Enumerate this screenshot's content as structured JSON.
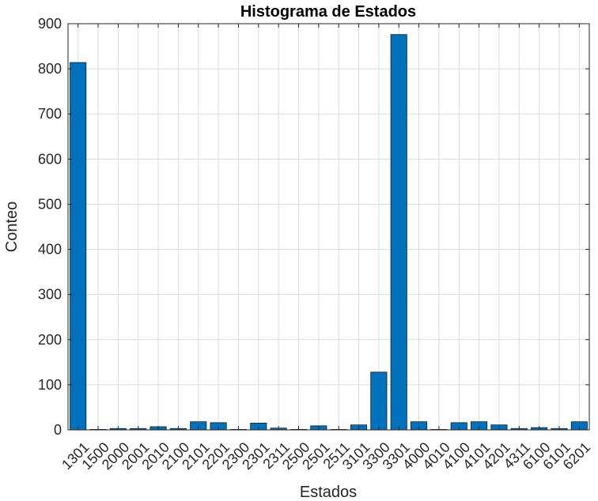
{
  "chart_data": {
    "type": "bar",
    "title": "Histograma de Estados",
    "xlabel": "Estados",
    "ylabel": "Conteo",
    "ylim": [
      0,
      900
    ],
    "yticks": [
      0,
      100,
      200,
      300,
      400,
      500,
      600,
      700,
      800,
      900
    ],
    "grid": true,
    "bar_color": "#0072BD",
    "categories": [
      "1301",
      "1500",
      "2000",
      "2001",
      "2010",
      "2100",
      "2101",
      "2201",
      "2300",
      "2301",
      "2311",
      "2500",
      "2501",
      "2511",
      "3101",
      "3300",
      "3301",
      "4000",
      "4010",
      "4100",
      "4101",
      "4201",
      "4311",
      "6100",
      "6101",
      "6201"
    ],
    "values": [
      814,
      1,
      3,
      3,
      7,
      3,
      18,
      16,
      1,
      15,
      4,
      1,
      9,
      1,
      11,
      128,
      876,
      18,
      1,
      16,
      18,
      11,
      3,
      5,
      3,
      18
    ]
  }
}
